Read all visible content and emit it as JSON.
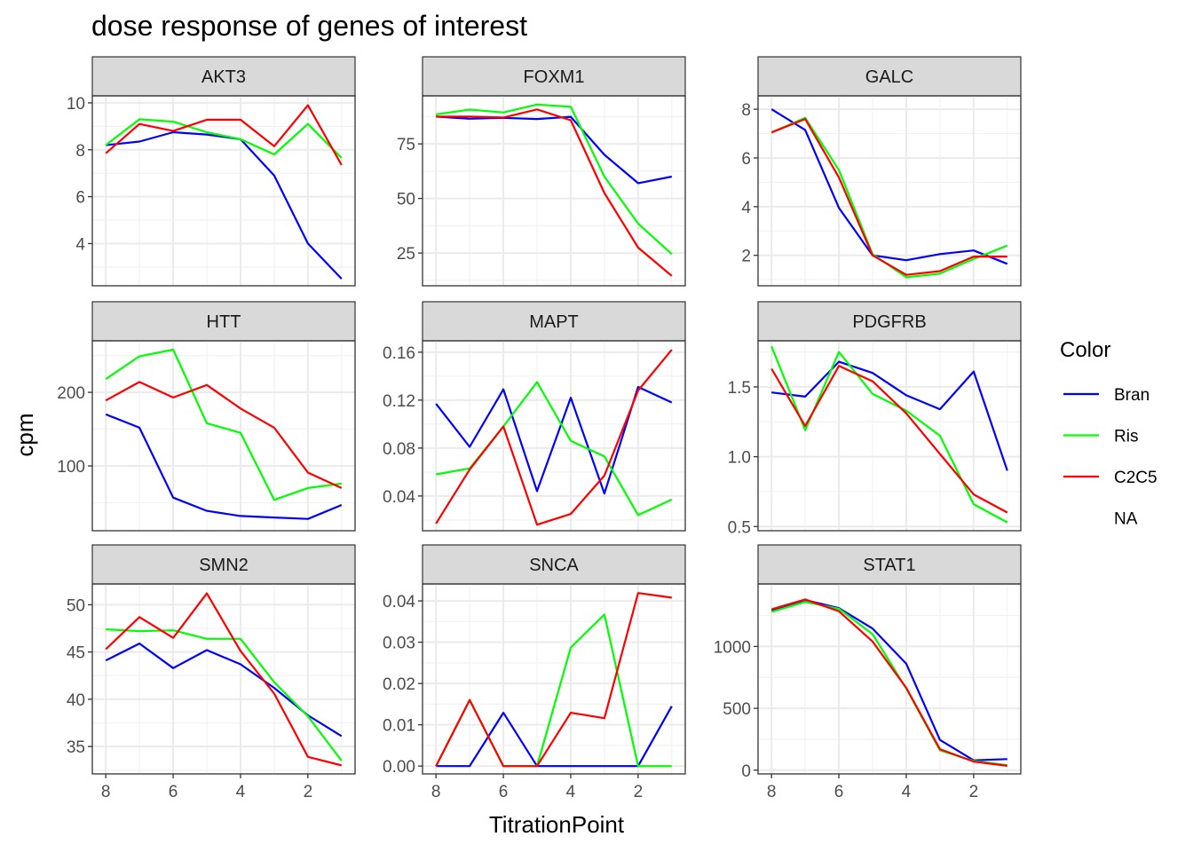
{
  "chart_data": {
    "type": "line",
    "title": "dose response of genes of interest",
    "xlabel": "TitrationPoint",
    "ylabel": "cpm",
    "x": [
      8,
      7,
      6,
      5,
      4,
      3,
      2,
      1
    ],
    "xlim": [
      8.4,
      0.6
    ],
    "xticks": [
      8,
      6,
      4,
      2
    ],
    "xtick_labels": [
      "8",
      "6",
      "4",
      "2"
    ],
    "legend": {
      "title": "Color",
      "entries": [
        {
          "name": "Bran",
          "color": "#0000ff"
        },
        {
          "name": "Ris",
          "color": "#00ff00"
        },
        {
          "name": "C2C5",
          "color": "#ff0000"
        },
        {
          "name": "NA",
          "color": "none"
        }
      ]
    },
    "panels": [
      {
        "gene": "AKT3",
        "ylim": [
          2.2,
          10.3
        ],
        "yticks": [
          4,
          6,
          8,
          10
        ],
        "ytick_labels": [
          "4",
          "6",
          "8",
          "10"
        ],
        "series": [
          {
            "name": "Bran",
            "values": [
              8.2,
              8.35,
              8.75,
              8.65,
              8.45,
              6.9,
              4.0,
              2.5
            ]
          },
          {
            "name": "Ris",
            "values": [
              8.2,
              9.3,
              9.2,
              8.75,
              8.45,
              7.8,
              9.1,
              7.65
            ]
          },
          {
            "name": "C2C5",
            "values": [
              7.85,
              9.1,
              8.8,
              9.28,
              9.28,
              8.15,
              9.9,
              7.35
            ]
          }
        ]
      },
      {
        "gene": "FOXM1",
        "ylim": [
          10,
          97
        ],
        "yticks": [
          25,
          50,
          75
        ],
        "ytick_labels": [
          "25",
          "50",
          "75"
        ],
        "series": [
          {
            "name": "Bran",
            "values": [
              87.5,
              86.5,
              86.9,
              86.4,
              87.4,
              70.0,
              57.0,
              60.0
            ]
          },
          {
            "name": "Ris",
            "values": [
              88.5,
              90.7,
              89.4,
              93.0,
              92.0,
              60.0,
              38.5,
              24.5
            ]
          },
          {
            "name": "C2C5",
            "values": [
              87.5,
              87.5,
              87.1,
              90.8,
              85.8,
              52.5,
              27.5,
              14.5
            ]
          }
        ]
      },
      {
        "gene": "GALC",
        "ylim": [
          0.75,
          8.55
        ],
        "yticks": [
          2,
          4,
          6,
          8
        ],
        "ytick_labels": [
          "2",
          "4",
          "6",
          "8"
        ],
        "series": [
          {
            "name": "Bran",
            "values": [
              8.0,
              7.15,
              3.95,
              2.0,
              1.8,
              2.05,
              2.2,
              1.65
            ]
          },
          {
            "name": "Ris",
            "values": [
              7.05,
              7.65,
              5.5,
              2.05,
              1.1,
              1.25,
              1.85,
              2.4
            ]
          },
          {
            "name": "C2C5",
            "values": [
              7.05,
              7.6,
              5.2,
              2.0,
              1.2,
              1.35,
              1.95,
              1.95
            ]
          }
        ]
      },
      {
        "gene": "HTT",
        "ylim": [
          12,
          270
        ],
        "yticks": [
          100,
          200
        ],
        "ytick_labels": [
          "100",
          "200"
        ],
        "series": [
          {
            "name": "Bran",
            "values": [
              170,
              152,
              57,
              39,
              32,
              30,
              28,
              47
            ]
          },
          {
            "name": "Ris",
            "values": [
              218,
              249,
              258,
              158,
              145,
              54,
              70,
              76
            ]
          },
          {
            "name": "C2C5",
            "values": [
              189,
              214,
              193,
              210,
              178,
              152,
              91,
              70
            ]
          }
        ]
      },
      {
        "gene": "MAPT",
        "ylim": [
          0.011,
          0.1695
        ],
        "yticks": [
          0.04,
          0.08,
          0.12,
          0.16
        ],
        "ytick_labels": [
          "0.04",
          "0.08",
          "0.12",
          "0.16"
        ],
        "series": [
          {
            "name": "Bran",
            "values": [
              0.117,
              0.081,
              0.129,
              0.044,
              0.122,
              0.042,
              0.131,
              0.118
            ]
          },
          {
            "name": "Ris",
            "values": [
              0.058,
              0.063,
              0.098,
              0.135,
              0.086,
              0.073,
              0.024,
              0.037
            ]
          },
          {
            "name": "C2C5",
            "values": [
              0.017,
              0.062,
              0.098,
              0.016,
              0.025,
              0.057,
              0.128,
              0.162
            ]
          }
        ]
      },
      {
        "gene": "PDGFRB",
        "ylim": [
          0.47,
          1.83
        ],
        "yticks": [
          0.5,
          1.0,
          1.5
        ],
        "ytick_labels": [
          "0.5",
          "1.0",
          "1.5"
        ],
        "series": [
          {
            "name": "Bran",
            "values": [
              1.46,
              1.43,
              1.68,
              1.6,
              1.44,
              1.34,
              1.61,
              0.9
            ]
          },
          {
            "name": "Ris",
            "values": [
              1.79,
              1.19,
              1.75,
              1.45,
              1.33,
              1.15,
              0.66,
              0.53
            ]
          },
          {
            "name": "C2C5",
            "values": [
              1.63,
              1.22,
              1.65,
              1.54,
              1.31,
              1.02,
              0.73,
              0.6
            ]
          }
        ]
      },
      {
        "gene": "SMN2",
        "ylim": [
          32.1,
          52.2
        ],
        "yticks": [
          35,
          40,
          45,
          50
        ],
        "ytick_labels": [
          "35",
          "40",
          "45",
          "50"
        ],
        "series": [
          {
            "name": "Bran",
            "values": [
              44.1,
              45.9,
              43.3,
              45.2,
              43.7,
              41.2,
              38.3,
              36.1
            ]
          },
          {
            "name": "Ris",
            "values": [
              47.4,
              47.2,
              47.3,
              46.4,
              46.4,
              41.8,
              38.2,
              33.5
            ]
          },
          {
            "name": "C2C5",
            "values": [
              45.3,
              48.7,
              46.5,
              51.2,
              45.1,
              40.6,
              33.9,
              33.0
            ]
          }
        ]
      },
      {
        "gene": "SNCA",
        "ylim": [
          -0.0019,
          0.0441
        ],
        "yticks": [
          0.0,
          0.01,
          0.02,
          0.03,
          0.04
        ],
        "ytick_labels": [
          "0.00",
          "0.01",
          "0.02",
          "0.03",
          "0.04"
        ],
        "series": [
          {
            "name": "Bran",
            "values": [
              0.0,
              0.0,
              0.0129,
              0.0,
              0.0,
              0.0,
              0.0,
              0.0145
            ]
          },
          {
            "name": "Ris",
            "values": [
              0.0,
              0.016,
              0.0,
              0.0,
              0.0287,
              0.0367,
              0.0,
              0.0
            ]
          },
          {
            "name": "C2C5",
            "values": [
              0.0,
              0.016,
              0.0,
              0.0,
              0.0129,
              0.0116,
              0.0419,
              0.0408
            ]
          }
        ]
      },
      {
        "gene": "STAT1",
        "ylim": [
          -30,
          1505
        ],
        "yticks": [
          0,
          500,
          1000
        ],
        "ytick_labels": [
          "0",
          "500",
          "1000"
        ],
        "series": [
          {
            "name": "Bran",
            "values": [
              1290,
              1375,
              1310,
              1145,
              860,
              245,
              80,
              90
            ]
          },
          {
            "name": "Ris",
            "values": [
              1280,
              1360,
              1305,
              1100,
              660,
              160,
              75,
              40
            ]
          },
          {
            "name": "C2C5",
            "values": [
              1300,
              1380,
              1285,
              1040,
              665,
              170,
              70,
              35
            ]
          }
        ]
      }
    ]
  }
}
